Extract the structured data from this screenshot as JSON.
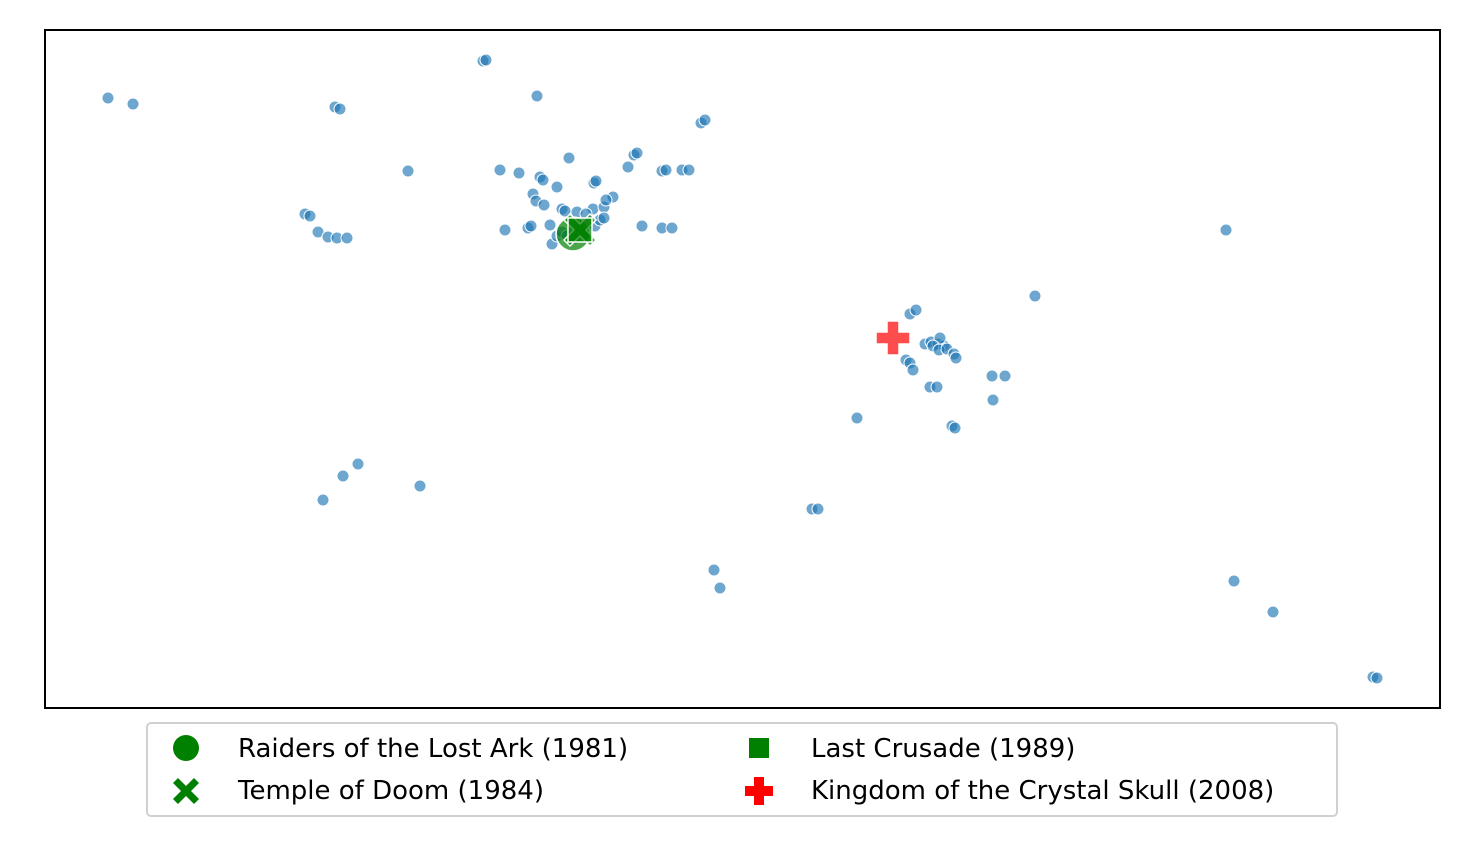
{
  "chart_data": {
    "type": "scatter",
    "title": "",
    "xlabel": "",
    "ylabel": "",
    "axes_ticks_visible": false,
    "grid": false,
    "xlim": [
      0,
      1395
    ],
    "ylim": [
      0,
      678
    ],
    "scatter_color": "#1f77b4",
    "points": [
      [
        63,
        610
      ],
      [
        88,
        604
      ],
      [
        290,
        601
      ],
      [
        295,
        599
      ],
      [
        438,
        647
      ],
      [
        441,
        648
      ],
      [
        492,
        612
      ],
      [
        363,
        537
      ],
      [
        455,
        538
      ],
      [
        474,
        535
      ],
      [
        495,
        531
      ],
      [
        498,
        528
      ],
      [
        512,
        521
      ],
      [
        524,
        550
      ],
      [
        488,
        514
      ],
      [
        491,
        507
      ],
      [
        499,
        503
      ],
      [
        517,
        499
      ],
      [
        520,
        497
      ],
      [
        549,
        525
      ],
      [
        551,
        527
      ],
      [
        583,
        541
      ],
      [
        589,
        553
      ],
      [
        592,
        555
      ],
      [
        617,
        537
      ],
      [
        621,
        538
      ],
      [
        637,
        538
      ],
      [
        644,
        538
      ],
      [
        656,
        585
      ],
      [
        660,
        588
      ],
      [
        548,
        499
      ],
      [
        559,
        501
      ],
      [
        568,
        511
      ],
      [
        561,
        508
      ],
      [
        260,
        494
      ],
      [
        265,
        492
      ],
      [
        273,
        476
      ],
      [
        283,
        471
      ],
      [
        292,
        470
      ],
      [
        302,
        470
      ],
      [
        460,
        478
      ],
      [
        483,
        480
      ],
      [
        505,
        483
      ],
      [
        507,
        464
      ],
      [
        512,
        472
      ],
      [
        517,
        476
      ],
      [
        522,
        472
      ],
      [
        530,
        470
      ],
      [
        535,
        478
      ],
      [
        540,
        474
      ],
      [
        550,
        482
      ],
      [
        555,
        488
      ],
      [
        559,
        490
      ],
      [
        597,
        482
      ],
      [
        617,
        480
      ],
      [
        627,
        480
      ],
      [
        1181,
        478
      ],
      [
        990,
        412
      ],
      [
        865,
        394
      ],
      [
        871,
        398
      ],
      [
        880,
        364
      ],
      [
        886,
        366
      ],
      [
        893,
        364
      ],
      [
        899,
        362
      ],
      [
        895,
        370
      ],
      [
        888,
        362
      ],
      [
        894,
        358
      ],
      [
        902,
        359
      ],
      [
        909,
        354
      ],
      [
        911,
        350
      ],
      [
        861,
        348
      ],
      [
        865,
        345
      ],
      [
        868,
        338
      ],
      [
        885,
        321
      ],
      [
        892,
        321
      ],
      [
        947,
        332
      ],
      [
        960,
        332
      ],
      [
        948,
        308
      ],
      [
        812,
        290
      ],
      [
        907,
        282
      ],
      [
        910,
        280
      ],
      [
        278,
        208
      ],
      [
        298,
        232
      ],
      [
        313,
        244
      ],
      [
        375,
        222
      ],
      [
        767,
        199
      ],
      [
        773,
        199
      ],
      [
        669,
        138
      ],
      [
        675,
        120
      ],
      [
        1189,
        127
      ],
      [
        1228,
        96
      ],
      [
        1328,
        31
      ],
      [
        1332,
        30
      ],
      [
        486,
        482
      ],
      [
        532,
        496
      ],
      [
        541,
        494
      ]
    ],
    "series": [
      {
        "name": "Raiders of the Lost Ark (1981)",
        "marker": "circle",
        "color": "#008000",
        "x": 528,
        "y": 474
      },
      {
        "name": "Temple of Doom (1984)",
        "marker": "x",
        "color": "#008000",
        "x": 535,
        "y": 478
      },
      {
        "name": "Last Crusade (1989)",
        "marker": "square",
        "color": "#008000",
        "x": 535,
        "y": 478
      },
      {
        "name": "Kingdom of the Crystal Skull (2008)",
        "marker": "plus",
        "color": "#ff0000",
        "x": 848,
        "y": 370
      }
    ],
    "legend": {
      "placement": "below-center",
      "columns": 2,
      "entries": [
        "Raiders of the Lost Ark (1981)",
        "Last Crusade (1989)",
        "Temple of Doom (1984)",
        "Kingdom of the Crystal Skull (2008)"
      ]
    }
  }
}
